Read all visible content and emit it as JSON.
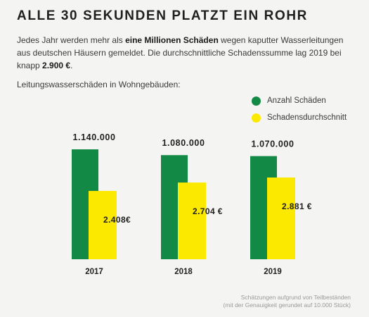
{
  "title": "ALLE 30 SEKUNDEN PLATZT EIN ROHR",
  "intro": {
    "part1": "Jedes Jahr werden mehr als ",
    "bold1": "eine Millionen Schäden",
    "part2": " wegen kaputter Wasserleitungen aus deutschen Häusern gemeldet. Die durchschnittliche Schadenssumme lag 2019 bei knapp ",
    "bold2": "2.900 €",
    "part3": "."
  },
  "subtitle": "Leitungswasserschäden in Wohngebäuden:",
  "legend": {
    "count_label": "Anzahl Schäden",
    "avg_label": "Schadensdurchschnitt"
  },
  "colors": {
    "count": "#128a46",
    "avg": "#fce900"
  },
  "footnote": {
    "line1": "Schätzungen aufgrund von Teilbeständen",
    "line2": "(mit der Genauigkeit gerundet auf 10.000 Stück)"
  },
  "chart_data": {
    "type": "bar",
    "categories": [
      "2017",
      "2018",
      "2019"
    ],
    "series": [
      {
        "name": "Anzahl Schäden",
        "values": [
          1140000,
          1080000,
          1070000
        ],
        "labels": [
          "1.140.000",
          "1.080.000",
          "1.070.000"
        ]
      },
      {
        "name": "Schadensdurchschnitt",
        "values": [
          2408,
          2704,
          2881
        ],
        "labels": [
          "2.408€",
          "2.704 €",
          "2.881 €"
        ]
      }
    ],
    "grid": false,
    "legend_position": "top-right"
  }
}
